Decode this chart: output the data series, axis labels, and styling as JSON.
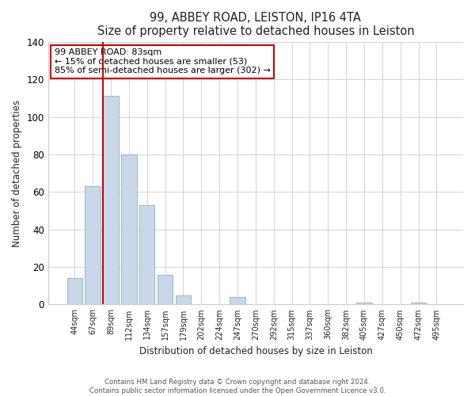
{
  "title": "99, ABBEY ROAD, LEISTON, IP16 4TA",
  "subtitle": "Size of property relative to detached houses in Leiston",
  "xlabel": "Distribution of detached houses by size in Leiston",
  "ylabel": "Number of detached properties",
  "bar_labels": [
    "44sqm",
    "67sqm",
    "89sqm",
    "112sqm",
    "134sqm",
    "157sqm",
    "179sqm",
    "202sqm",
    "224sqm",
    "247sqm",
    "270sqm",
    "292sqm",
    "315sqm",
    "337sqm",
    "360sqm",
    "382sqm",
    "405sqm",
    "427sqm",
    "450sqm",
    "472sqm",
    "495sqm"
  ],
  "bar_values": [
    14,
    63,
    111,
    80,
    53,
    16,
    5,
    0,
    0,
    4,
    0,
    0,
    0,
    0,
    0,
    0,
    1,
    0,
    0,
    1,
    0
  ],
  "bar_color": "#c8d8e8",
  "bar_edgecolor": "#9ab4cc",
  "ylim": [
    0,
    140
  ],
  "yticks": [
    0,
    20,
    40,
    60,
    80,
    100,
    120,
    140
  ],
  "vline_color": "#cc0000",
  "annotation_title": "99 ABBEY ROAD: 83sqm",
  "annotation_line1": "← 15% of detached houses are smaller (53)",
  "annotation_line2": "85% of semi-detached houses are larger (302) →",
  "annotation_box_color": "#ffffff",
  "annotation_box_edgecolor": "#cc0000",
  "footer1": "Contains HM Land Registry data © Crown copyright and database right 2024.",
  "footer2": "Contains public sector information licensed under the Open Government Licence v3.0.",
  "background_color": "#ffffff"
}
